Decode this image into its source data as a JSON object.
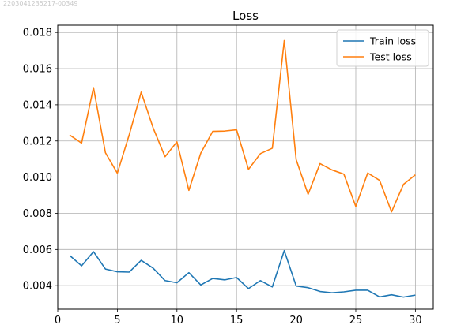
{
  "header": {
    "top_number": "2203041235217-00349"
  },
  "chart_data": {
    "type": "line",
    "title": "Loss",
    "xlabel": "",
    "ylabel": "",
    "xlim": [
      0,
      31.5
    ],
    "ylim": [
      0.0027,
      0.0184
    ],
    "xticks": [
      0,
      5,
      10,
      15,
      20,
      25,
      30
    ],
    "yticks": [
      0.004,
      0.006,
      0.008,
      0.01,
      0.012,
      0.014,
      0.016,
      0.018
    ],
    "ytick_labels": [
      "0.004",
      "0.006",
      "0.008",
      "0.010",
      "0.012",
      "0.014",
      "0.016",
      "0.018"
    ],
    "grid": true,
    "legend_position": "top-right",
    "x": [
      1,
      2,
      3,
      4,
      5,
      6,
      7,
      8,
      9,
      10,
      11,
      12,
      13,
      14,
      15,
      16,
      17,
      18,
      19,
      20,
      21,
      22,
      23,
      24,
      25,
      26,
      27,
      28,
      29,
      30
    ],
    "series": [
      {
        "name": "Train loss",
        "color": "#1f77b4",
        "values": [
          0.00567,
          0.0051,
          0.00588,
          0.00492,
          0.00477,
          0.00475,
          0.0054,
          0.00497,
          0.00428,
          0.00416,
          0.00472,
          0.00404,
          0.0044,
          0.00432,
          0.00445,
          0.00384,
          0.00428,
          0.00393,
          0.00594,
          0.00398,
          0.00389,
          0.00368,
          0.00361,
          0.00366,
          0.00375,
          0.00375,
          0.00338,
          0.0035,
          0.00337,
          0.00348
        ]
      },
      {
        "name": "Test loss",
        "color": "#ff7f0e",
        "values": [
          0.01233,
          0.01188,
          0.01495,
          0.01135,
          0.01022,
          0.01235,
          0.0147,
          0.01273,
          0.01113,
          0.01195,
          0.00927,
          0.01133,
          0.01253,
          0.01255,
          0.01262,
          0.01043,
          0.0113,
          0.0116,
          0.01755,
          0.01097,
          0.00905,
          0.01075,
          0.0104,
          0.01017,
          0.00838,
          0.01023,
          0.00982,
          0.00808,
          0.0096,
          0.01013
        ]
      }
    ]
  }
}
